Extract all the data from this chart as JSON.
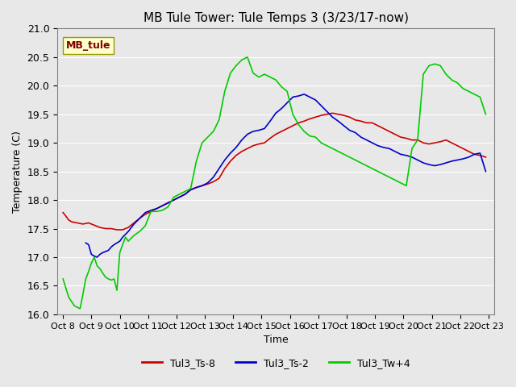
{
  "title": "MB Tule Tower: Tule Temps 3 (3/23/17-now)",
  "xlabel": "Time",
  "ylabel": "Temperature (C)",
  "ylim": [
    16.0,
    21.0
  ],
  "yticks": [
    16.0,
    16.5,
    17.0,
    17.5,
    18.0,
    18.5,
    19.0,
    19.5,
    20.0,
    20.5,
    21.0
  ],
  "x_labels": [
    "Oct 8",
    "Oct 9",
    "Oct 10",
    "Oct 11",
    "Oct 12",
    "Oct 13",
    "Oct 14",
    "Oct 15",
    "Oct 16",
    "Oct 17",
    "Oct 18",
    "Oct 19",
    "Oct 20",
    "Oct 21",
    "Oct 22",
    "Oct 23"
  ],
  "x_positions": [
    0,
    1,
    2,
    3,
    4,
    5,
    6,
    7,
    8,
    9,
    10,
    11,
    12,
    13,
    14,
    15
  ],
  "background_color": "#e8e8e8",
  "plot_bg_color": "#e8e8e8",
  "line_color_red": "#cc0000",
  "line_color_blue": "#0000cc",
  "line_color_green": "#00cc00",
  "legend_labels": [
    "Tul3_Ts-8",
    "Tul3_Ts-2",
    "Tul3_Tw+4"
  ],
  "annotation_text": "MB_tule",
  "annotation_box_color": "#ffffcc",
  "annotation_text_color": "#800000",
  "red_x": [
    0.0,
    0.1,
    0.2,
    0.3,
    0.5,
    0.7,
    0.9,
    1.1,
    1.3,
    1.5,
    1.7,
    1.9,
    2.1,
    2.3,
    2.5,
    2.7,
    2.9,
    3.1,
    3.3,
    3.5,
    3.7,
    3.9,
    4.1,
    4.3,
    4.5,
    4.7,
    4.9,
    5.1,
    5.3,
    5.5,
    5.7,
    5.9,
    6.1,
    6.3,
    6.5,
    6.7,
    6.9,
    7.1,
    7.3,
    7.5,
    7.7,
    7.9,
    8.1,
    8.3,
    8.5,
    8.7,
    8.9,
    9.1,
    9.3,
    9.5,
    9.7,
    9.9,
    10.1,
    10.3,
    10.5,
    10.7,
    10.9,
    11.1,
    11.3,
    11.5,
    11.7,
    11.9,
    12.1,
    12.3,
    12.5,
    12.7,
    12.9,
    13.1,
    13.3,
    13.5,
    13.7,
    13.9,
    14.1,
    14.3,
    14.5,
    14.7,
    14.9
  ],
  "red_y": [
    17.78,
    17.72,
    17.65,
    17.62,
    17.6,
    17.58,
    17.6,
    17.56,
    17.52,
    17.5,
    17.5,
    17.48,
    17.48,
    17.52,
    17.6,
    17.68,
    17.75,
    17.8,
    17.85,
    17.9,
    17.95,
    18.0,
    18.05,
    18.1,
    18.18,
    18.22,
    18.25,
    18.28,
    18.32,
    18.38,
    18.55,
    18.68,
    18.78,
    18.85,
    18.9,
    18.95,
    18.98,
    19.0,
    19.08,
    19.15,
    19.2,
    19.25,
    19.3,
    19.35,
    19.38,
    19.42,
    19.45,
    19.48,
    19.5,
    19.52,
    19.5,
    19.48,
    19.45,
    19.4,
    19.38,
    19.35,
    19.35,
    19.3,
    19.25,
    19.2,
    19.15,
    19.1,
    19.08,
    19.05,
    19.05,
    19.0,
    18.98,
    19.0,
    19.02,
    19.05,
    19.0,
    18.95,
    18.9,
    18.85,
    18.8,
    18.78,
    18.75
  ],
  "blue_x": [
    0.8,
    0.9,
    1.0,
    1.1,
    1.2,
    1.3,
    1.4,
    1.5,
    1.6,
    1.7,
    1.8,
    1.9,
    2.0,
    2.1,
    2.3,
    2.5,
    2.7,
    2.9,
    3.1,
    3.3,
    3.5,
    3.7,
    3.9,
    4.1,
    4.3,
    4.5,
    4.7,
    4.9,
    5.1,
    5.3,
    5.5,
    5.7,
    5.9,
    6.1,
    6.3,
    6.5,
    6.7,
    6.9,
    7.1,
    7.3,
    7.5,
    7.7,
    7.9,
    8.1,
    8.3,
    8.5,
    8.7,
    8.9,
    9.1,
    9.3,
    9.5,
    9.7,
    9.9,
    10.1,
    10.3,
    10.5,
    10.7,
    10.9,
    11.1,
    11.3,
    11.5,
    11.7,
    11.9,
    12.1,
    12.3,
    12.5,
    12.7,
    12.9,
    13.1,
    13.3,
    13.5,
    13.7,
    13.9,
    14.1,
    14.3,
    14.5,
    14.7,
    14.9
  ],
  "blue_y": [
    17.25,
    17.22,
    17.05,
    17.02,
    17.0,
    17.05,
    17.08,
    17.1,
    17.12,
    17.18,
    17.22,
    17.25,
    17.28,
    17.35,
    17.45,
    17.58,
    17.68,
    17.78,
    17.82,
    17.85,
    17.9,
    17.95,
    18.0,
    18.05,
    18.1,
    18.18,
    18.22,
    18.25,
    18.3,
    18.4,
    18.55,
    18.7,
    18.82,
    18.92,
    19.05,
    19.15,
    19.2,
    19.22,
    19.25,
    19.38,
    19.52,
    19.6,
    19.7,
    19.8,
    19.82,
    19.85,
    19.8,
    19.75,
    19.65,
    19.55,
    19.45,
    19.38,
    19.3,
    19.22,
    19.18,
    19.1,
    19.05,
    19.0,
    18.95,
    18.92,
    18.9,
    18.85,
    18.8,
    18.78,
    18.75,
    18.7,
    18.65,
    18.62,
    18.6,
    18.62,
    18.65,
    18.68,
    18.7,
    18.72,
    18.75,
    18.8,
    18.82,
    18.5
  ],
  "green_x": [
    0.0,
    0.2,
    0.4,
    0.6,
    0.7,
    0.8,
    0.9,
    1.0,
    1.1,
    1.2,
    1.3,
    1.4,
    1.5,
    1.6,
    1.7,
    1.8,
    1.9,
    2.0,
    2.1,
    2.2,
    2.3,
    2.5,
    2.7,
    2.9,
    3.1,
    3.3,
    3.5,
    3.7,
    3.9,
    4.1,
    4.3,
    4.5,
    4.7,
    4.9,
    5.1,
    5.3,
    5.5,
    5.7,
    5.9,
    6.1,
    6.3,
    6.5,
    6.7,
    6.9,
    7.1,
    7.3,
    7.5,
    7.7,
    7.9,
    8.1,
    8.3,
    8.5,
    8.7,
    8.9,
    9.1,
    9.3,
    9.5,
    9.7,
    9.9,
    10.1,
    10.3,
    10.5,
    10.7,
    10.9,
    11.1,
    11.3,
    11.5,
    11.7,
    11.9,
    12.1,
    12.3,
    12.5,
    12.7,
    12.9,
    13.1,
    13.3,
    13.5,
    13.7,
    13.9,
    14.1,
    14.3,
    14.5,
    14.7,
    14.9
  ],
  "green_y": [
    16.62,
    16.3,
    16.15,
    16.1,
    16.35,
    16.62,
    16.75,
    16.9,
    17.0,
    16.85,
    16.8,
    16.72,
    16.65,
    16.62,
    16.6,
    16.62,
    16.42,
    17.08,
    17.22,
    17.35,
    17.28,
    17.38,
    17.45,
    17.55,
    17.8,
    17.8,
    17.82,
    17.88,
    18.05,
    18.1,
    18.15,
    18.2,
    18.68,
    19.0,
    19.1,
    19.2,
    19.4,
    19.9,
    20.22,
    20.35,
    20.45,
    20.5,
    20.22,
    20.15,
    20.2,
    20.15,
    20.1,
    19.98,
    19.9,
    19.5,
    19.32,
    19.2,
    19.12,
    19.1,
    19.0,
    18.95,
    18.9,
    18.85,
    18.8,
    18.75,
    18.7,
    18.65,
    18.6,
    18.55,
    18.5,
    18.45,
    18.4,
    18.35,
    18.3,
    18.25,
    18.9,
    19.05,
    20.2,
    20.35,
    20.38,
    20.35,
    20.2,
    20.1,
    20.05,
    19.95,
    19.9,
    19.85,
    19.8,
    19.5
  ]
}
